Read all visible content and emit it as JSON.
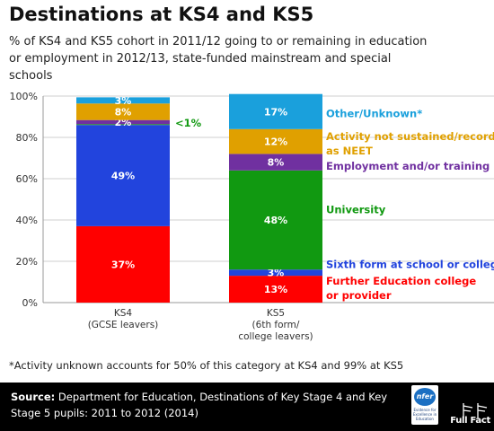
{
  "title": "Destinations at KS4 and KS5",
  "subtitle": "% of KS4 and KS5 cohort in 2011/12 going to or remaining in education or employment in 2012/13, state-funded mainstream and special schools",
  "footnote": "*Activity unknown accounts for 50% of this category at KS4 and 99% at KS5",
  "source": {
    "label": "Source:",
    "text": " Department for Education, Destinations of Key Stage 4 and Key Stage 5 pupils: 2011 to 2012 (2014)"
  },
  "logos": {
    "nfer_text": "nfer",
    "nfer_tagline": "Evidence for Excellence in Education",
    "fullfact_text": "Full Fact"
  },
  "chart_data": {
    "type": "bar",
    "stacked": true,
    "categories": [
      {
        "name": "KS4",
        "sublines": [
          "(GCSE leavers)"
        ]
      },
      {
        "name": "KS5",
        "sublines": [
          "(6th form/",
          "college leavers)"
        ]
      }
    ],
    "ylim": [
      0,
      100
    ],
    "yticks": [
      "0%",
      "20%",
      "40%",
      "60%",
      "80%",
      "100%"
    ],
    "series": [
      {
        "name": "Further Education college or provider",
        "color": "#ff0000",
        "values": [
          37,
          13
        ],
        "labels": [
          "37%",
          "13%"
        ]
      },
      {
        "name": "Sixth form at school or college",
        "color": "#2244dd",
        "values": [
          49,
          3
        ],
        "labels": [
          "49%",
          "3%"
        ]
      },
      {
        "name": "University",
        "color": "#119911",
        "values": [
          0.4,
          48
        ],
        "labels": [
          "",
          "48%"
        ]
      },
      {
        "name": "Employment and/or training",
        "color": "#7030a0",
        "values": [
          2,
          8
        ],
        "labels": [
          "2%",
          "8%"
        ]
      },
      {
        "name": "Activity not sustained/recorded as NEET",
        "color": "#e0a000",
        "values": [
          8,
          12
        ],
        "labels": [
          "8%",
          "12%"
        ]
      },
      {
        "name": "Other/Unknown*",
        "color": "#1aa0dc",
        "values": [
          3,
          17
        ],
        "labels": [
          "3%",
          "17%"
        ]
      }
    ],
    "annotations": [
      {
        "text": "<1%",
        "color": "#119911",
        "category": 0,
        "series": "University"
      }
    ],
    "legend": [
      {
        "lines": [
          "Other/Unknown*"
        ],
        "color": "#1aa0dc",
        "series": "Other/Unknown*"
      },
      {
        "lines": [
          "Activity not sustained/recorded",
          "as NEET"
        ],
        "color": "#e0a000",
        "series": "Activity not sustained/recorded as NEET"
      },
      {
        "lines": [
          "Employment and/or training"
        ],
        "color": "#7030a0",
        "series": "Employment and/or training"
      },
      {
        "lines": [
          "University"
        ],
        "color": "#119911",
        "series": "University"
      },
      {
        "lines": [
          "Sixth form at school or college"
        ],
        "color": "#2244dd",
        "series": "Sixth form at school or college"
      },
      {
        "lines": [
          "Further Education college",
          "or provider"
        ],
        "color": "#ff0000",
        "series": "Further Education college or provider"
      }
    ]
  }
}
